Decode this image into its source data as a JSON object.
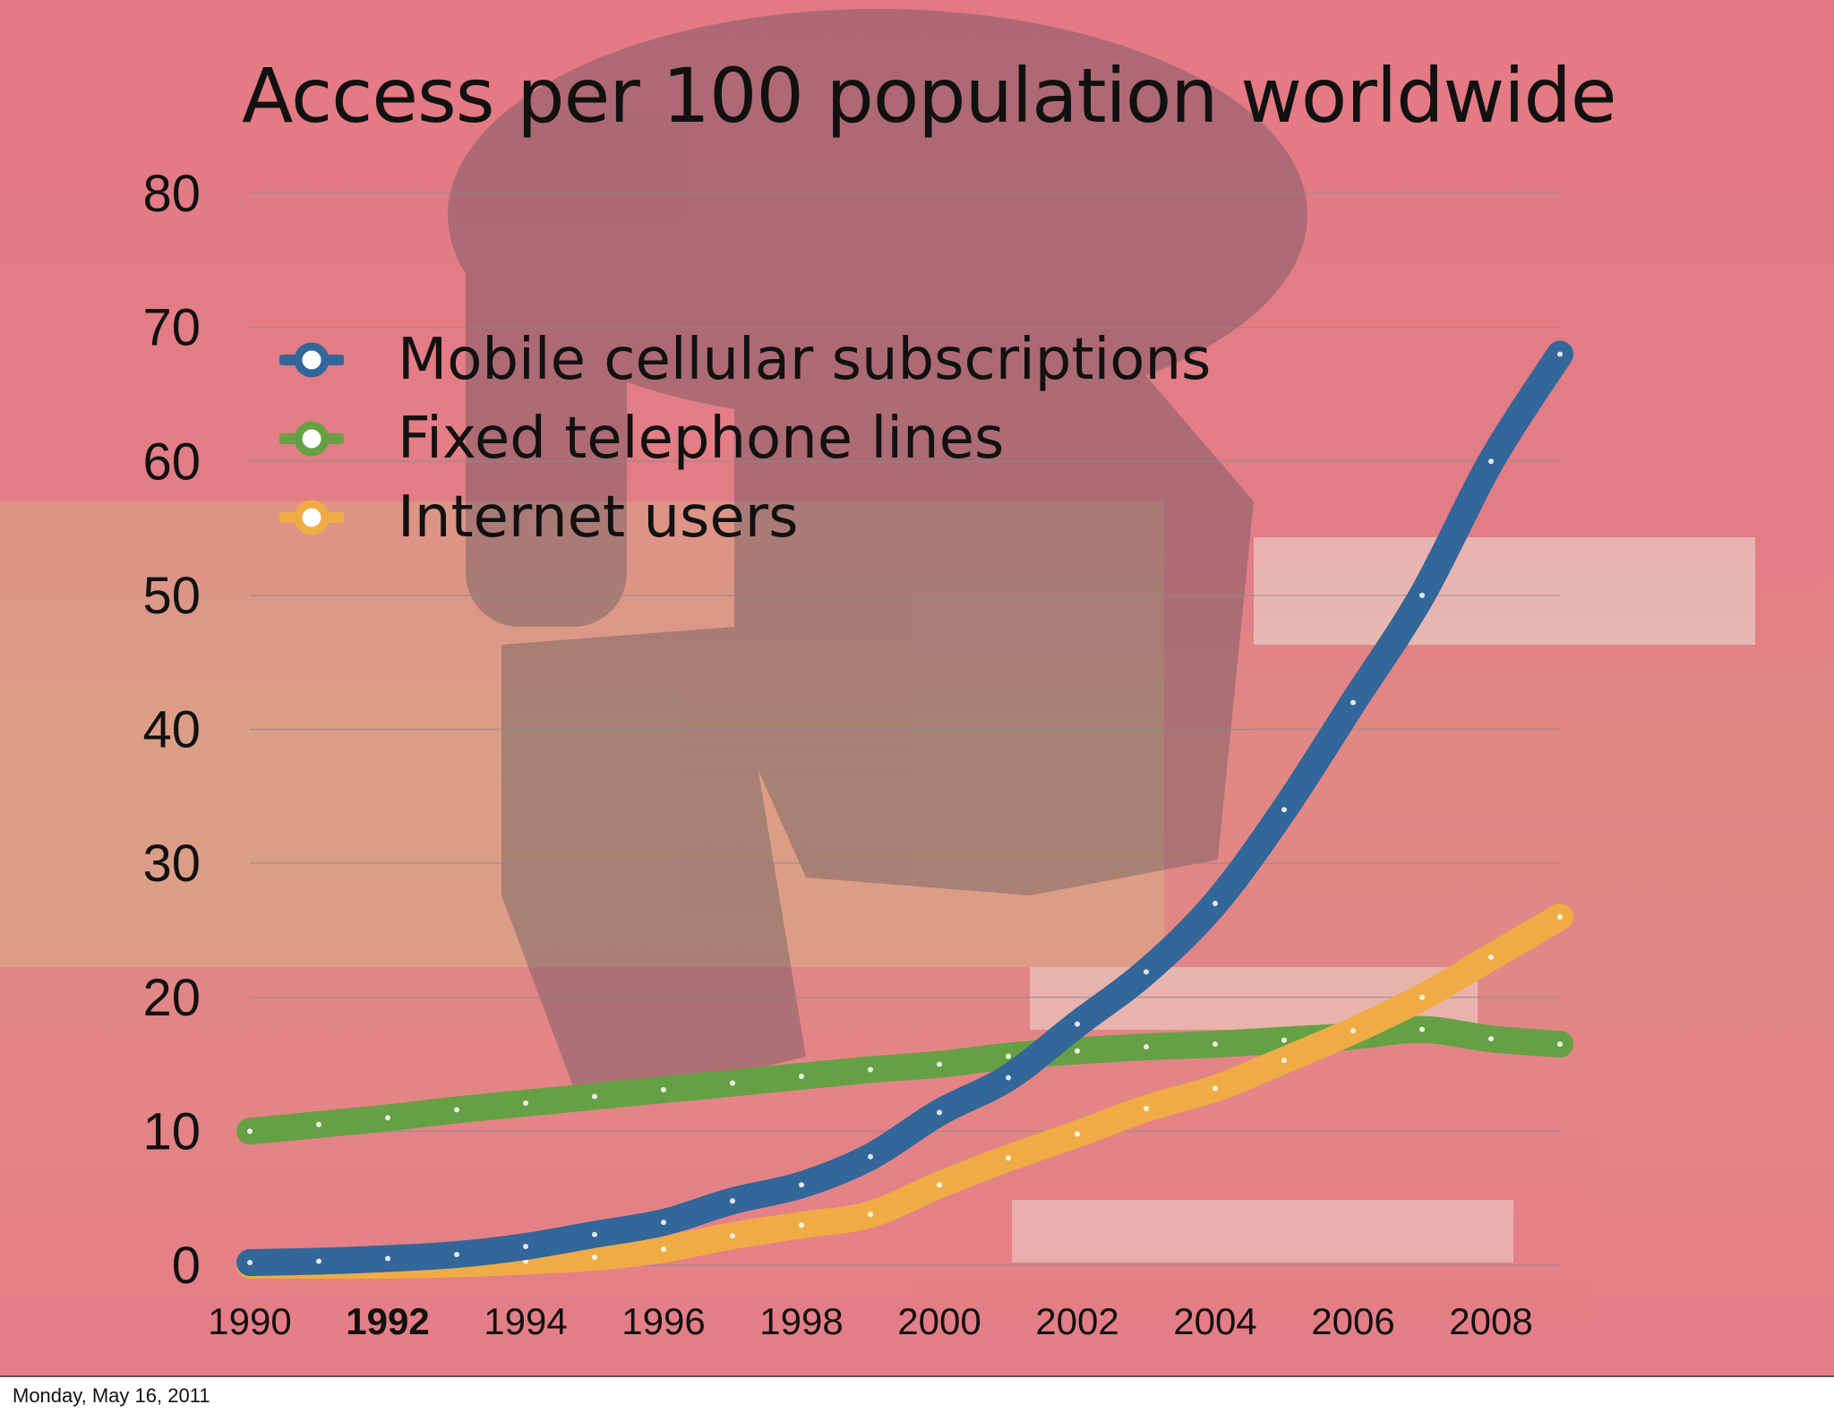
{
  "footer": {
    "date": "Monday, May 16, 2011"
  },
  "chart_data": {
    "type": "line",
    "title": "Access per 100 population worldwide",
    "xlabel": "",
    "ylabel": "",
    "ylim": [
      0,
      80
    ],
    "xlim": [
      1990,
      2009
    ],
    "y_ticks": [
      "0",
      "10",
      "20",
      "30",
      "40",
      "50",
      "60",
      "70",
      "80"
    ],
    "x_ticks": [
      "1990",
      "1992",
      "1994",
      "1996",
      "1998",
      "2000",
      "2002",
      "2004",
      "2006",
      "2008"
    ],
    "grid": true,
    "legend_position": "top-left",
    "x": [
      1990,
      1991,
      1992,
      1993,
      1994,
      1995,
      1996,
      1997,
      1998,
      1999,
      2000,
      2001,
      2002,
      2003,
      2004,
      2005,
      2006,
      2007,
      2008,
      2009
    ],
    "series": [
      {
        "name": "Mobile cellular subscriptions",
        "color": "#336699",
        "values": [
          0.2,
          0.3,
          0.5,
          0.8,
          1.4,
          2.3,
          3.2,
          4.8,
          6.0,
          8.1,
          11.4,
          14.0,
          18.0,
          21.9,
          27.0,
          34.0,
          42.0,
          50.0,
          60.0,
          68.0
        ]
      },
      {
        "name": "Fixed telephone lines",
        "color": "#66a044",
        "values": [
          10.0,
          10.5,
          11.0,
          11.6,
          12.1,
          12.6,
          13.1,
          13.6,
          14.1,
          14.6,
          15.0,
          15.6,
          16.0,
          16.3,
          16.5,
          16.8,
          17.1,
          17.6,
          16.9,
          16.5
        ]
      },
      {
        "name": "Internet users",
        "color": "#efac44",
        "values": [
          0.0,
          0.0,
          0.0,
          0.1,
          0.3,
          0.6,
          1.2,
          2.2,
          3.0,
          3.8,
          6.0,
          8.0,
          9.8,
          11.7,
          13.2,
          15.3,
          17.5,
          20.0,
          23.0,
          26.0
        ]
      }
    ]
  }
}
